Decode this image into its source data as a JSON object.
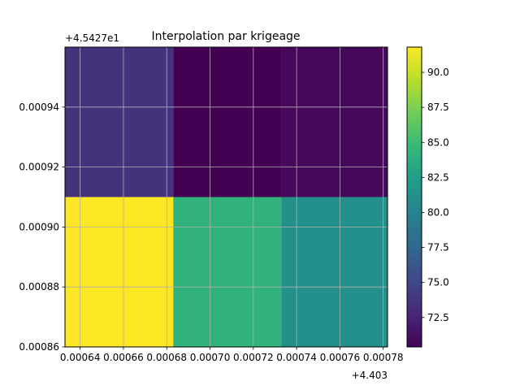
{
  "chart_data": {
    "type": "heatmap",
    "title": "Interpolation par krigeage",
    "xlabel": "",
    "ylabel": "",
    "x_offset_text": "+4.403",
    "y_offset_text": "+4.5427e1",
    "x_ticks": [
      0.00064,
      0.00066,
      0.00068,
      0.0007,
      0.00072,
      0.00074,
      0.00076,
      0.00078
    ],
    "x_tick_labels": [
      "0.00064",
      "0.00066",
      "0.00068",
      "0.00070",
      "0.00072",
      "0.00074",
      "0.00076",
      "0.00078"
    ],
    "y_ticks": [
      0.00086,
      0.00088,
      0.0009,
      0.00092,
      0.00094
    ],
    "y_tick_labels": [
      "0.00086",
      "0.00088",
      "0.00090",
      "0.00092",
      "0.00094"
    ],
    "xlim": [
      0.000633,
      0.000782
    ],
    "ylim": [
      0.00086,
      0.00096
    ],
    "x_edges": [
      0.000633,
      0.000683,
      0.000733,
      0.000782
    ],
    "y_edges": [
      0.00086,
      0.00091,
      0.00096
    ],
    "values": [
      [
        91.8,
        84.2,
        81.1
      ],
      [
        73.5,
        70.4,
        70.8
      ]
    ],
    "colorbar": {
      "range": [
        70.4,
        91.8
      ],
      "ticks": [
        72.5,
        75.0,
        77.5,
        80.0,
        82.5,
        85.0,
        87.5,
        90.0
      ],
      "tick_labels": [
        "72.5",
        "75.0",
        "77.5",
        "80.0",
        "82.5",
        "85.0",
        "87.5",
        "90.0"
      ],
      "colormap": "viridis"
    },
    "grid": true,
    "colors": {
      "grid": "#b0b0b0",
      "axis": "#000000",
      "background": "#ffffff"
    }
  }
}
